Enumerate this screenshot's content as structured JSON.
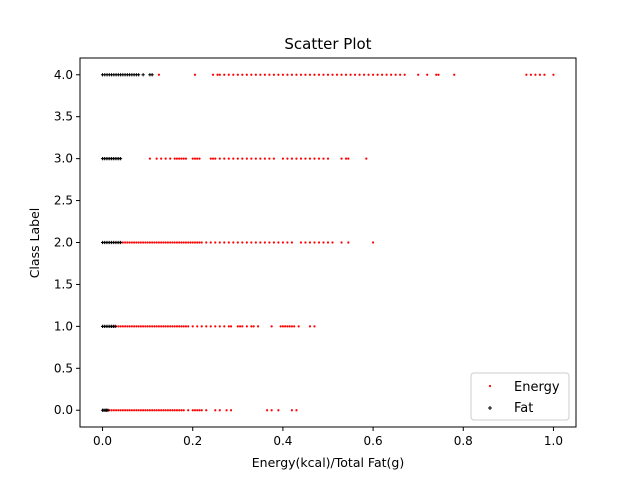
{
  "chart_data": {
    "type": "scatter",
    "title": "Scatter Plot",
    "xlabel": "Energy(kcal)/Total Fat(g)",
    "ylabel": "Class Label",
    "xlim": [
      -0.05,
      1.05
    ],
    "ylim": [
      -0.2,
      4.2
    ],
    "xticks": [
      0.0,
      0.2,
      0.4,
      0.6,
      0.8,
      1.0
    ],
    "xtick_labels": [
      "0.0",
      "0.2",
      "0.4",
      "0.6",
      "0.8",
      "1.0"
    ],
    "yticks": [
      0.0,
      0.5,
      1.0,
      1.5,
      2.0,
      2.5,
      3.0,
      3.5,
      4.0
    ],
    "ytick_labels": [
      "0.0",
      "0.5",
      "1.0",
      "1.5",
      "2.0",
      "2.5",
      "3.0",
      "3.5",
      "4.0"
    ],
    "grid": false,
    "legend_position": "lower-right",
    "series": [
      {
        "name": "Energy",
        "color": "#ff0000",
        "marker": "dot",
        "points": [
          {
            "y": 0,
            "x": [
              0.005,
              0.01,
              0.015,
              0.02,
              0.025,
              0.03,
              0.035,
              0.04,
              0.045,
              0.05,
              0.055,
              0.06,
              0.065,
              0.07,
              0.075,
              0.08,
              0.085,
              0.09,
              0.095,
              0.1,
              0.105,
              0.11,
              0.115,
              0.12,
              0.125,
              0.13,
              0.135,
              0.14,
              0.145,
              0.15,
              0.155,
              0.16,
              0.165,
              0.17,
              0.175,
              0.18,
              0.19,
              0.2,
              0.205,
              0.21,
              0.215,
              0.22,
              0.23,
              0.25,
              0.26,
              0.275,
              0.285,
              0.365,
              0.375,
              0.39,
              0.42,
              0.43
            ]
          },
          {
            "y": 1,
            "x": [
              0.02,
              0.025,
              0.03,
              0.035,
              0.04,
              0.045,
              0.05,
              0.055,
              0.06,
              0.065,
              0.07,
              0.075,
              0.08,
              0.085,
              0.09,
              0.095,
              0.1,
              0.105,
              0.11,
              0.115,
              0.12,
              0.125,
              0.13,
              0.135,
              0.14,
              0.145,
              0.15,
              0.155,
              0.16,
              0.165,
              0.17,
              0.175,
              0.18,
              0.185,
              0.19,
              0.2,
              0.21,
              0.22,
              0.23,
              0.24,
              0.25,
              0.26,
              0.27,
              0.28,
              0.285,
              0.3,
              0.305,
              0.31,
              0.32,
              0.33,
              0.335,
              0.345,
              0.375,
              0.395,
              0.4,
              0.405,
              0.41,
              0.415,
              0.42,
              0.425,
              0.435,
              0.46,
              0.47
            ]
          },
          {
            "y": 2,
            "x": [
              0.04,
              0.045,
              0.05,
              0.055,
              0.06,
              0.065,
              0.07,
              0.075,
              0.08,
              0.085,
              0.09,
              0.095,
              0.1,
              0.105,
              0.11,
              0.115,
              0.12,
              0.125,
              0.13,
              0.135,
              0.14,
              0.145,
              0.15,
              0.155,
              0.16,
              0.165,
              0.17,
              0.175,
              0.18,
              0.185,
              0.19,
              0.195,
              0.2,
              0.205,
              0.21,
              0.215,
              0.22,
              0.23,
              0.24,
              0.25,
              0.26,
              0.27,
              0.28,
              0.29,
              0.3,
              0.31,
              0.32,
              0.33,
              0.34,
              0.35,
              0.36,
              0.37,
              0.38,
              0.39,
              0.4,
              0.41,
              0.42,
              0.44,
              0.45,
              0.46,
              0.47,
              0.48,
              0.49,
              0.5,
              0.51,
              0.53,
              0.545,
              0.6
            ]
          },
          {
            "y": 3,
            "x": [
              0.105,
              0.12,
              0.13,
              0.14,
              0.15,
              0.16,
              0.165,
              0.17,
              0.175,
              0.18,
              0.185,
              0.2,
              0.205,
              0.21,
              0.215,
              0.24,
              0.245,
              0.25,
              0.26,
              0.27,
              0.28,
              0.29,
              0.3,
              0.31,
              0.32,
              0.33,
              0.34,
              0.35,
              0.36,
              0.37,
              0.38,
              0.4,
              0.41,
              0.42,
              0.43,
              0.44,
              0.45,
              0.46,
              0.47,
              0.48,
              0.49,
              0.5,
              0.53,
              0.54,
              0.545,
              0.585
            ]
          },
          {
            "y": 4,
            "x": [
              0.125,
              0.205,
              0.245,
              0.255,
              0.26,
              0.27,
              0.28,
              0.29,
              0.3,
              0.31,
              0.32,
              0.33,
              0.34,
              0.35,
              0.36,
              0.37,
              0.38,
              0.39,
              0.4,
              0.41,
              0.42,
              0.43,
              0.44,
              0.45,
              0.46,
              0.47,
              0.48,
              0.49,
              0.5,
              0.51,
              0.52,
              0.53,
              0.54,
              0.55,
              0.56,
              0.57,
              0.58,
              0.59,
              0.6,
              0.61,
              0.62,
              0.63,
              0.64,
              0.65,
              0.66,
              0.67,
              0.7,
              0.72,
              0.74,
              0.745,
              0.78,
              0.94,
              0.95,
              0.96,
              0.97,
              0.98,
              1.0
            ]
          }
        ]
      },
      {
        "name": "Fat",
        "color": "#000000",
        "marker": "plus",
        "points": [
          {
            "y": 0,
            "x": [
              0.0,
              0.003,
              0.006,
              0.009,
              0.012
            ]
          },
          {
            "y": 1,
            "x": [
              0.0,
              0.004,
              0.008,
              0.012,
              0.016,
              0.02,
              0.024,
              0.028
            ]
          },
          {
            "y": 2,
            "x": [
              0.0,
              0.004,
              0.008,
              0.012,
              0.016,
              0.02,
              0.024,
              0.028,
              0.032,
              0.036,
              0.04
            ]
          },
          {
            "y": 3,
            "x": [
              0.0,
              0.004,
              0.008,
              0.012,
              0.016,
              0.02,
              0.024,
              0.028,
              0.032,
              0.036,
              0.04
            ]
          },
          {
            "y": 4,
            "x": [
              0.0,
              0.005,
              0.01,
              0.015,
              0.02,
              0.025,
              0.03,
              0.035,
              0.04,
              0.045,
              0.05,
              0.055,
              0.06,
              0.065,
              0.07,
              0.075,
              0.08,
              0.09,
              0.105,
              0.11
            ]
          }
        ]
      }
    ]
  }
}
